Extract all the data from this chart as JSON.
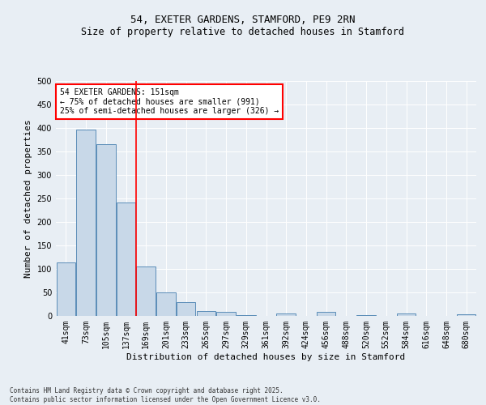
{
  "title": "54, EXETER GARDENS, STAMFORD, PE9 2RN",
  "subtitle": "Size of property relative to detached houses in Stamford",
  "xlabel": "Distribution of detached houses by size in Stamford",
  "ylabel": "Number of detached properties",
  "categories": [
    "41sqm",
    "73sqm",
    "105sqm",
    "137sqm",
    "169sqm",
    "201sqm",
    "233sqm",
    "265sqm",
    "297sqm",
    "329sqm",
    "361sqm",
    "392sqm",
    "424sqm",
    "456sqm",
    "488sqm",
    "520sqm",
    "552sqm",
    "584sqm",
    "616sqm",
    "648sqm",
    "680sqm"
  ],
  "values": [
    113,
    397,
    365,
    242,
    105,
    50,
    30,
    10,
    8,
    2,
    0,
    5,
    0,
    8,
    0,
    2,
    0,
    6,
    0,
    0,
    3
  ],
  "bar_color": "#c8d8e8",
  "bar_edge_color": "#5b8db8",
  "red_line_x": 3.5,
  "annotation_text": "54 EXETER GARDENS: 151sqm\n← 75% of detached houses are smaller (991)\n25% of semi-detached houses are larger (326) →",
  "annotation_box_color": "white",
  "annotation_box_edge_color": "red",
  "footer_text": "Contains HM Land Registry data © Crown copyright and database right 2025.\nContains public sector information licensed under the Open Government Licence v3.0.",
  "background_color": "#e8eef4",
  "ylim": [
    0,
    500
  ],
  "title_fontsize": 9,
  "subtitle_fontsize": 8.5,
  "tick_fontsize": 7,
  "ylabel_fontsize": 8,
  "xlabel_fontsize": 8,
  "annotation_fontsize": 7,
  "footer_fontsize": 5.5
}
